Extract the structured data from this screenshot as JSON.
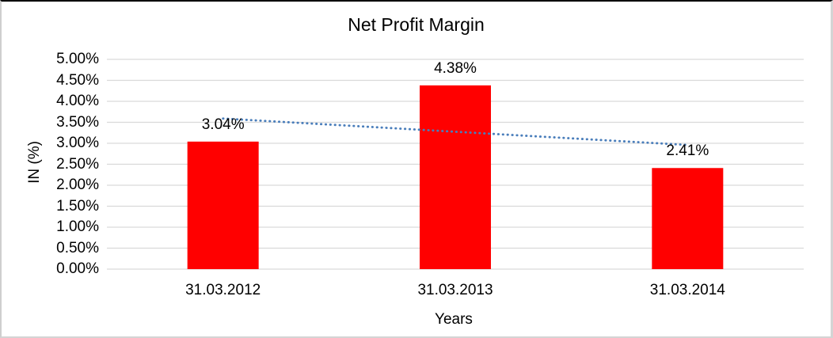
{
  "chart_data": {
    "type": "bar",
    "title": "Net Profit Margin",
    "xlabel": "Years",
    "ylabel": "IN (%)",
    "categories": [
      "31.03.2012",
      "31.03.2013",
      "31.03.2014"
    ],
    "series": [
      {
        "name": "Net Profit Margin",
        "color": "#ff0000",
        "values": [
          3.04,
          4.38,
          2.41
        ]
      }
    ],
    "data_labels": [
      "3.04%",
      "4.38%",
      "2.41%"
    ],
    "ylim": [
      0,
      5
    ],
    "ytick_step": 0.5,
    "yticks": [
      {
        "v": 0.0,
        "label": "0.00%"
      },
      {
        "v": 0.5,
        "label": "0.50%"
      },
      {
        "v": 1.0,
        "label": "1.00%"
      },
      {
        "v": 1.5,
        "label": "1.50%"
      },
      {
        "v": 2.0,
        "label": "2.00%"
      },
      {
        "v": 2.5,
        "label": "2.50%"
      },
      {
        "v": 3.0,
        "label": "3.00%"
      },
      {
        "v": 3.5,
        "label": "3.50%"
      },
      {
        "v": 4.0,
        "label": "4.00%"
      },
      {
        "v": 4.5,
        "label": "4.50%"
      },
      {
        "v": 5.0,
        "label": "5.00%"
      }
    ],
    "grid": true,
    "gridline_color": "#d9d9d9",
    "trendline": {
      "type": "linear",
      "style": "dotted",
      "color": "#4a7ebb",
      "endpoint_values": [
        3.59,
        2.96
      ]
    },
    "legend": "none"
  }
}
